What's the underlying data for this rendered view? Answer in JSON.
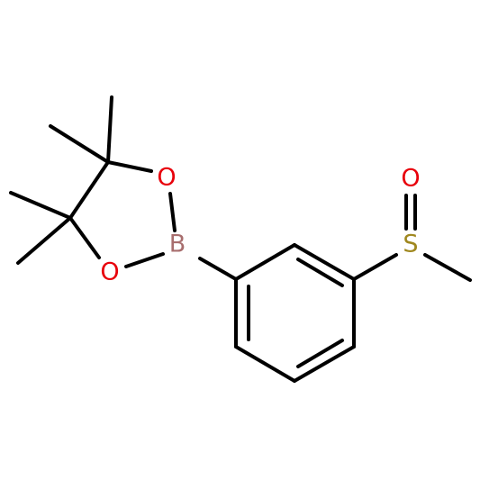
{
  "atoms": [
    {
      "label": "O"
    },
    {
      "label": "O"
    },
    {
      "label": "B"
    },
    {
      "label": "S"
    },
    {
      "label": "O"
    }
  ]
}
